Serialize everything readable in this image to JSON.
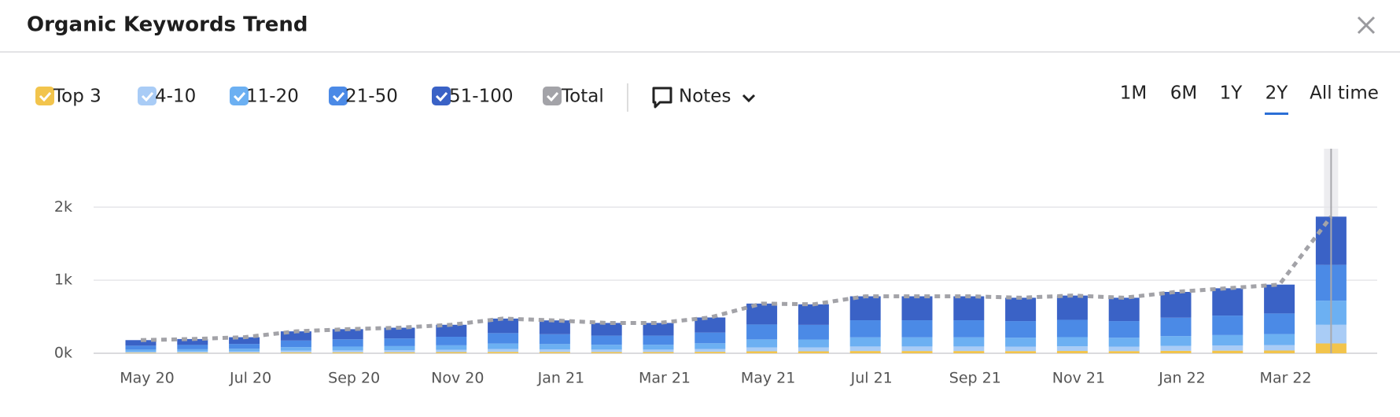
{
  "chart_data": {
    "type": "stacked-bar",
    "title": "Organic Keywords Trend",
    "categories": [
      "May 20",
      null,
      "Jul 20",
      null,
      "Sep 20",
      null,
      "Nov 20",
      null,
      "Jan 21",
      null,
      "Mar 21",
      null,
      "May 21",
      null,
      "Jul 21",
      null,
      "Sep 21",
      null,
      "Nov 21",
      null,
      "Jan 22",
      null,
      "Mar 22",
      null
    ],
    "series": [
      {
        "name": "Top 3",
        "color": "#f2c44c",
        "values": [
          7,
          8,
          9,
          12,
          13,
          14,
          16,
          19,
          18,
          17,
          17,
          20,
          27,
          27,
          31,
          31,
          31,
          30,
          32,
          30,
          34,
          36,
          38,
          135
        ]
      },
      {
        "name": "4-10",
        "color": "#a9ccf6",
        "values": [
          14,
          16,
          18,
          24,
          26,
          28,
          31,
          38,
          36,
          33,
          33,
          39,
          54,
          54,
          62,
          62,
          62,
          61,
          63,
          61,
          67,
          71,
          75,
          255
        ]
      },
      {
        "name": "11-20",
        "color": "#6cb0f2",
        "values": [
          29,
          31,
          35,
          48,
          53,
          56,
          62,
          76,
          72,
          66,
          66,
          78,
          109,
          107,
          125,
          125,
          125,
          122,
          126,
          122,
          134,
          142,
          150,
          330
        ]
      },
      {
        "name": "21-50",
        "color": "#4b8ae6",
        "values": [
          54,
          59,
          66,
          90,
          99,
          105,
          117,
          143,
          135,
          125,
          125,
          147,
          204,
          201,
          234,
          234,
          234,
          228,
          237,
          228,
          252,
          267,
          282,
          490
        ]
      },
      {
        "name": "51-100",
        "color": "#3a62c6",
        "values": [
          76,
          81,
          92,
          126,
          139,
          147,
          164,
          199,
          189,
          174,
          174,
          206,
          286,
          281,
          328,
          328,
          328,
          319,
          332,
          319,
          353,
          374,
          395,
          660
        ]
      },
      {
        "name": "Total",
        "color": "#a3a3a8",
        "style": "dashed-line",
        "values": [
          180,
          195,
          220,
          300,
          330,
          350,
          390,
          475,
          450,
          415,
          415,
          490,
          680,
          670,
          780,
          780,
          780,
          760,
          790,
          760,
          840,
          890,
          940,
          1870
        ]
      }
    ],
    "ylim": [
      0,
      2800
    ],
    "yticks": [
      {
        "value": 0,
        "label": "0k"
      },
      {
        "value": 1000,
        "label": "1k"
      },
      {
        "value": 2000,
        "label": "2k"
      }
    ],
    "grid": true
  },
  "controls": {
    "notes": "Notes",
    "ranges": [
      "1M",
      "6M",
      "1Y",
      "2Y",
      "All time"
    ],
    "selected_range": 3
  }
}
